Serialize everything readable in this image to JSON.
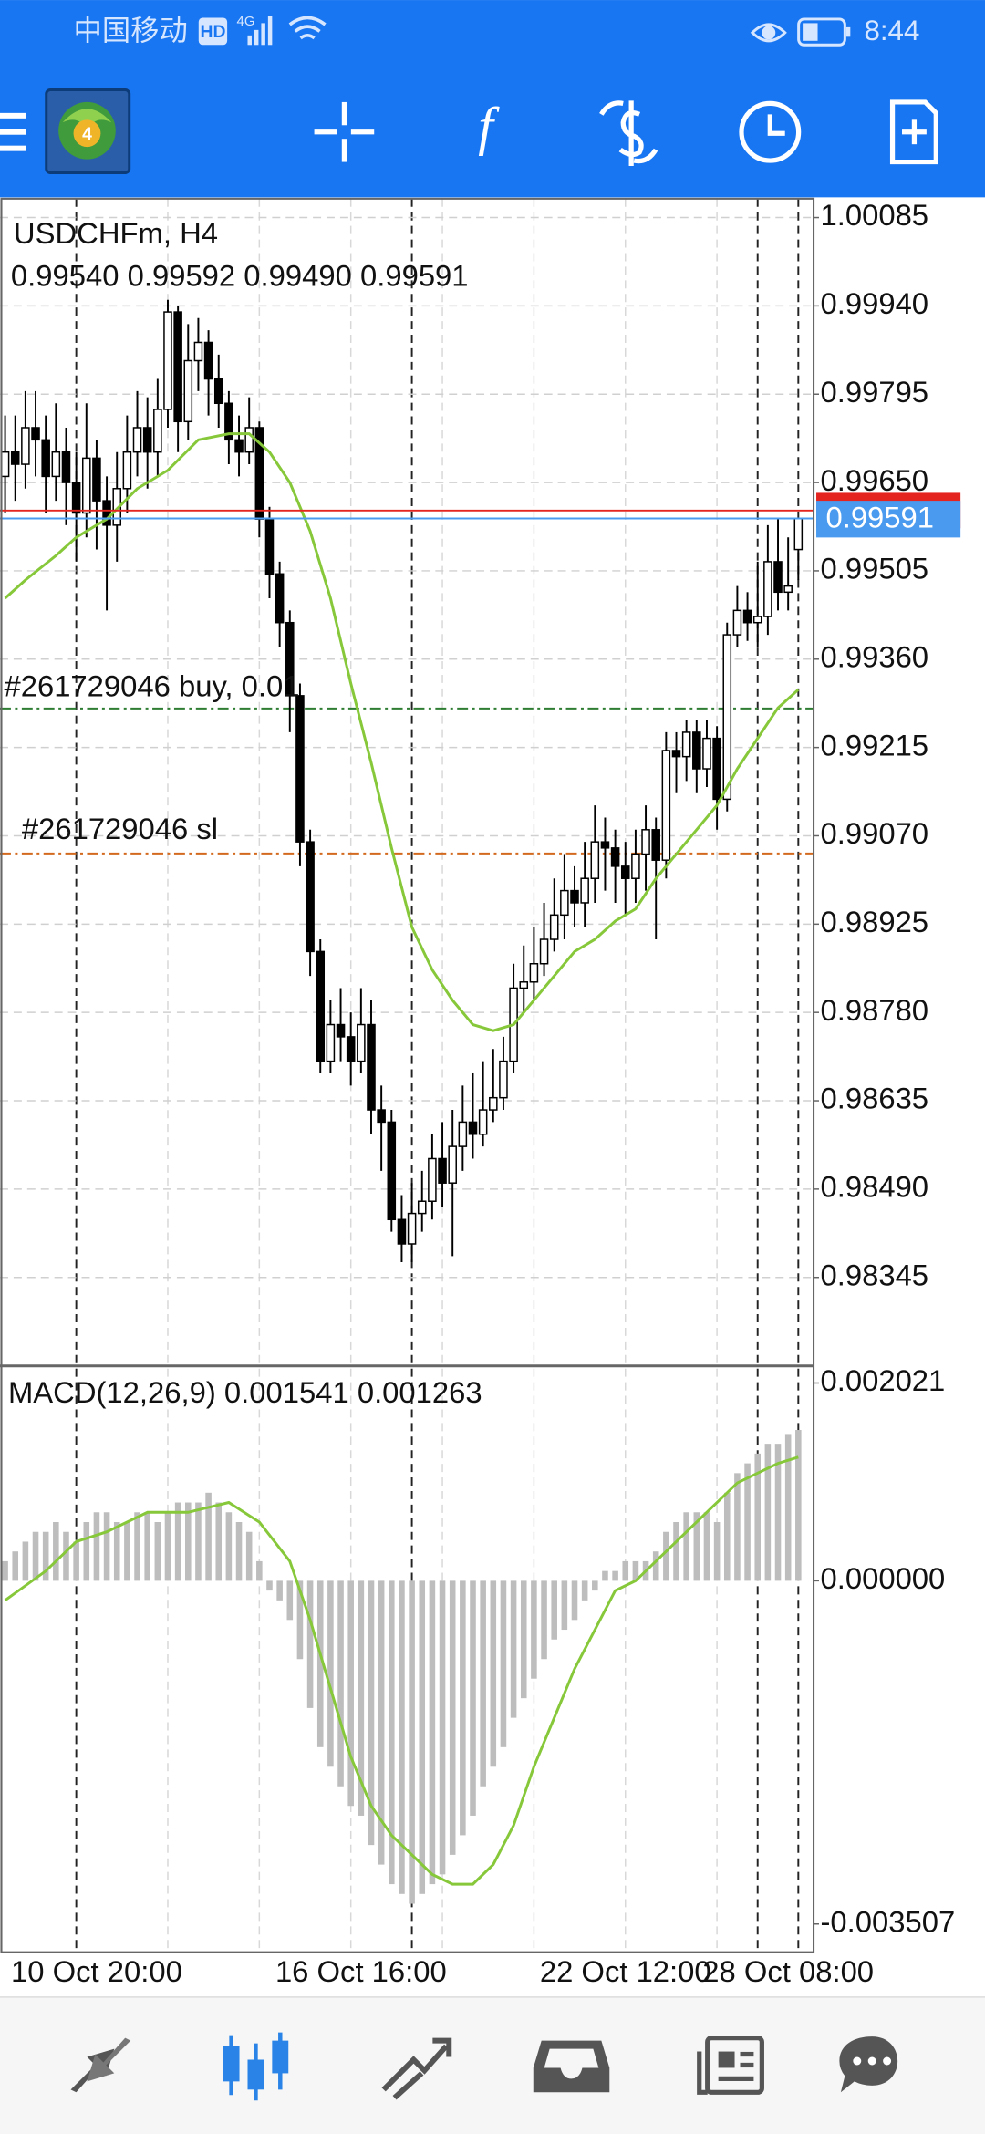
{
  "status_bar": {
    "carrier": "中国移动",
    "network_badge": "HD",
    "network": "4G",
    "time": "8:44"
  },
  "chart_data": {
    "type": "candlestick",
    "symbol": "USDCHFm, H4",
    "last_ohlc": [
      "0.99540",
      "0.99592",
      "0.99490",
      "0.99591"
    ],
    "categories": [
      null,
      null,
      null,
      null,
      null,
      null,
      null,
      null,
      null,
      "10 Oct 20:00",
      null,
      null,
      null,
      null,
      null,
      null,
      null,
      null,
      null,
      null,
      null,
      null,
      null,
      null,
      null,
      null,
      null,
      null,
      null,
      null,
      null,
      null,
      null,
      null,
      null,
      "16 Oct 16:00",
      null,
      null,
      null,
      null,
      null,
      null,
      null,
      null,
      null,
      null,
      null,
      null,
      null,
      null,
      null,
      null,
      null,
      null,
      null,
      null,
      null,
      null,
      null,
      null,
      null,
      "22 Oct 12:00",
      null,
      null,
      null,
      null,
      null,
      null,
      null,
      null,
      null,
      null,
      null,
      null,
      null,
      null,
      null,
      "28 Oct 08:00",
      null
    ],
    "open": [
      0.9966,
      0.997,
      0.9968,
      0.9974,
      0.9972,
      0.9966,
      0.997,
      0.9965,
      0.996,
      0.9969,
      0.9962,
      0.9958,
      0.9964,
      0.997,
      0.9974,
      0.997,
      0.9977,
      0.9993,
      0.9975,
      0.9985,
      0.9988,
      0.9982,
      0.9978,
      0.9972,
      0.997,
      0.9974,
      0.9959,
      0.995,
      0.9942,
      0.993,
      0.9906,
      0.9888,
      0.987,
      0.9876,
      0.9874,
      0.987,
      0.9876,
      0.9862,
      0.986,
      0.9844,
      0.984,
      0.9845,
      0.9847,
      0.9854,
      0.985,
      0.9856,
      0.986,
      0.9858,
      0.9862,
      0.9864,
      0.987,
      0.9882,
      0.9883,
      0.9886,
      0.989,
      0.9894,
      0.9898,
      0.9896,
      0.99,
      0.9906,
      0.9905,
      0.9902,
      0.99,
      0.9904,
      0.9908,
      0.9903,
      0.9921,
      0.992,
      0.9924,
      0.9918,
      0.9923,
      0.9913,
      0.994,
      0.9944,
      0.9942,
      0.9943,
      0.9952,
      0.9947,
      0.9954
    ],
    "high": [
      0.9976,
      0.9976,
      0.998,
      0.998,
      0.9976,
      0.9978,
      0.9974,
      0.997,
      0.9978,
      0.9972,
      0.9966,
      0.997,
      0.9976,
      0.998,
      0.9979,
      0.9982,
      0.9995,
      0.9994,
      0.9991,
      0.9992,
      0.999,
      0.9986,
      0.998,
      0.9976,
      0.9979,
      0.9975,
      0.9961,
      0.9952,
      0.9944,
      0.9932,
      0.9908,
      0.989,
      0.988,
      0.9882,
      0.9878,
      0.9882,
      0.988,
      0.9866,
      0.9862,
      0.9848,
      0.985,
      0.9852,
      0.9858,
      0.986,
      0.9862,
      0.9866,
      0.9868,
      0.987,
      0.9872,
      0.9874,
      0.9886,
      0.9889,
      0.9892,
      0.9896,
      0.99,
      0.9904,
      0.9902,
      0.9906,
      0.9912,
      0.991,
      0.9908,
      0.9906,
      0.9908,
      0.9912,
      0.991,
      0.9924,
      0.9924,
      0.9926,
      0.9926,
      0.9926,
      0.9925,
      0.9942,
      0.9948,
      0.9947,
      0.9952,
      0.9958,
      0.9959,
      0.9956,
      0.99592
    ],
    "low": [
      0.996,
      0.9962,
      0.9964,
      0.9966,
      0.996,
      0.9962,
      0.9958,
      0.9952,
      0.9956,
      0.9954,
      0.9944,
      0.9952,
      0.996,
      0.9966,
      0.9964,
      0.9966,
      0.9974,
      0.997,
      0.9972,
      0.998,
      0.9976,
      0.9974,
      0.9968,
      0.9966,
      0.9968,
      0.9956,
      0.9946,
      0.9938,
      0.9924,
      0.9902,
      0.9884,
      0.9868,
      0.9868,
      0.987,
      0.9866,
      0.9868,
      0.9858,
      0.9852,
      0.9842,
      0.9837,
      0.9837,
      0.9842,
      0.9844,
      0.9846,
      0.9838,
      0.9852,
      0.9854,
      0.9856,
      0.986,
      0.9862,
      0.9868,
      0.9878,
      0.988,
      0.9884,
      0.9888,
      0.989,
      0.9892,
      0.9892,
      0.9896,
      0.9898,
      0.9896,
      0.9894,
      0.9896,
      0.9898,
      0.989,
      0.99,
      0.9914,
      0.9916,
      0.9914,
      0.9915,
      0.9908,
      0.9911,
      0.9938,
      0.9939,
      0.9938,
      0.994,
      0.9944,
      0.9944,
      0.9949
    ],
    "close": [
      0.997,
      0.9968,
      0.9974,
      0.9972,
      0.9966,
      0.997,
      0.9965,
      0.996,
      0.9969,
      0.9962,
      0.9958,
      0.9964,
      0.997,
      0.9974,
      0.997,
      0.9977,
      0.9993,
      0.9975,
      0.9985,
      0.9988,
      0.9982,
      0.9978,
      0.9972,
      0.997,
      0.9974,
      0.9959,
      0.995,
      0.9942,
      0.993,
      0.9906,
      0.9888,
      0.987,
      0.9876,
      0.9874,
      0.987,
      0.9876,
      0.9862,
      0.986,
      0.9844,
      0.984,
      0.9845,
      0.9847,
      0.9854,
      0.985,
      0.9856,
      0.986,
      0.9858,
      0.9862,
      0.9864,
      0.987,
      0.9882,
      0.9883,
      0.9886,
      0.989,
      0.9894,
      0.9898,
      0.9896,
      0.99,
      0.9906,
      0.9905,
      0.9902,
      0.99,
      0.9904,
      0.9908,
      0.9903,
      0.9921,
      0.992,
      0.9924,
      0.9918,
      0.9923,
      0.9913,
      0.994,
      0.9944,
      0.9942,
      0.9943,
      0.9952,
      0.9947,
      0.9948,
      0.99591
    ],
    "up_fill": "#ffffff",
    "down_fill": "#000000",
    "candle_outline": "#000000",
    "ylim": [
      0.98202,
      1.00116
    ],
    "yticks": [
      1.00085,
      {
        "value": 0.9994,
        "label": "0.99940"
      },
      0.99795,
      {
        "value": 0.9965,
        "label": "0.99650"
      },
      0.99505,
      {
        "value": 0.9936,
        "label": "0.99360"
      },
      0.99215,
      {
        "value": 0.9907,
        "label": "0.99070"
      },
      0.98925,
      {
        "value": 0.9878,
        "label": "0.98780"
      },
      0.98635,
      {
        "value": 0.9849,
        "label": "0.98490"
      },
      0.98345
    ],
    "grid": true,
    "ma": {
      "color": "#86c83a",
      "x": [
        0,
        2,
        5,
        7,
        10,
        13,
        16,
        19,
        22,
        24,
        26,
        28,
        30,
        32,
        34,
        36,
        38,
        40,
        42,
        44,
        46,
        48,
        50,
        52,
        54,
        56,
        58,
        60,
        62,
        64,
        66,
        68,
        70,
        72,
        74,
        76,
        78
      ],
      "values": [
        0.9946,
        0.9949,
        0.9953,
        0.9956,
        0.9959,
        0.9964,
        0.9967,
        0.9972,
        0.9973,
        0.9973,
        0.997,
        0.9965,
        0.9957,
        0.9946,
        0.9932,
        0.9919,
        0.9905,
        0.9892,
        0.9885,
        0.988,
        0.9876,
        0.9875,
        0.9876,
        0.988,
        0.9884,
        0.9888,
        0.989,
        0.9893,
        0.9895,
        0.99,
        0.9904,
        0.9908,
        0.9912,
        0.9918,
        0.9923,
        0.9928,
        0.9931
      ]
    },
    "bid": {
      "value": 0.99591,
      "color": "#4a9bf0"
    },
    "ask": {
      "value": 0.99604,
      "color": "#e3241f"
    },
    "orders": [
      {
        "label": "#261729046 buy, 0.01",
        "price": 0.99279,
        "color": "#2e7d32"
      },
      {
        "label": "#261729046 sl",
        "price": 0.99041,
        "color": "#d2691e"
      }
    ],
    "macd": {
      "title": "MACD(12,26,9)",
      "bar_color": "#bdbdbd",
      "histogram": [
        0.0002,
        0.0003,
        0.0004,
        0.0005,
        0.0005,
        0.0006,
        0.0005,
        0.0004,
        0.0006,
        0.0007,
        0.0007,
        0.0006,
        0.0006,
        0.0007,
        0.0007,
        0.0006,
        0.0007,
        0.0008,
        0.0008,
        0.0008,
        0.0009,
        0.0008,
        0.0007,
        0.0006,
        0.0005,
        0.0002,
        -0.0001,
        -0.0002,
        -0.0004,
        -0.0008,
        -0.0013,
        -0.0017,
        -0.0019,
        -0.0021,
        -0.0023,
        -0.0024,
        -0.0027,
        -0.0029,
        -0.0031,
        -0.0032,
        -0.0033,
        -0.0032,
        -0.0031,
        -0.003,
        -0.0028,
        -0.0026,
        -0.0024,
        -0.0021,
        -0.0019,
        -0.0017,
        -0.0014,
        -0.0012,
        -0.001,
        -0.0008,
        -0.0006,
        -0.0005,
        -0.0004,
        -0.0002,
        -0.0001,
        0.0001,
        0.0001,
        0.0002,
        0.0002,
        0.0002,
        0.0003,
        0.0005,
        0.0006,
        0.0007,
        0.0007,
        0.0007,
        0.0006,
        0.0009,
        0.0011,
        0.0012,
        0.0013,
        0.0014,
        0.0014,
        0.0015,
        0.001541
      ],
      "signal": {
        "color": "#86c83a",
        "x": [
          0,
          4,
          7,
          10,
          14,
          18,
          22,
          25,
          28,
          30,
          32,
          34,
          36,
          38,
          40,
          42,
          44,
          46,
          48,
          50,
          52,
          54,
          56,
          58,
          60,
          62,
          64,
          66,
          68,
          70,
          72,
          74,
          76,
          78
        ],
        "values": [
          -0.0002,
          0.0001,
          0.0004,
          0.0005,
          0.0007,
          0.0007,
          0.0008,
          0.0006,
          0.0002,
          -0.0004,
          -0.0011,
          -0.0018,
          -0.0023,
          -0.0026,
          -0.0028,
          -0.003,
          -0.0031,
          -0.0031,
          -0.0029,
          -0.0025,
          -0.0019,
          -0.0014,
          -0.0009,
          -0.0005,
          -0.0001,
          0.0,
          0.0002,
          0.0004,
          0.0006,
          0.0008,
          0.001,
          0.0011,
          0.0012,
          0.001263
        ]
      },
      "ylim": [
        -0.003795,
        0.002182
      ],
      "yticks": [
        0.002021,
        {
          "value": 0,
          "label": "0.000000"
        },
        -0.003507
      ]
    }
  }
}
